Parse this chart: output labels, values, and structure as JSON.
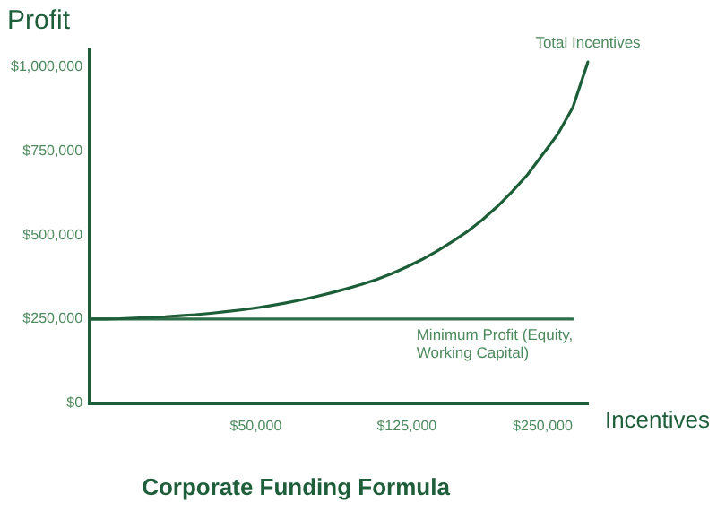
{
  "chart_data": {
    "type": "line",
    "title": "Corporate Funding Formula",
    "xlabel": "Incentives",
    "ylabel": "Profit",
    "categories": [
      null,
      null,
      null,
      null,
      null,
      null,
      null,
      null,
      null,
      null,
      null,
      "$50,000",
      null,
      null,
      null,
      null,
      null,
      null,
      null,
      null,
      null,
      "$125,000",
      null,
      null,
      null,
      null,
      null,
      null,
      null,
      null,
      "$250,000",
      null,
      null,
      null
    ],
    "series": [
      {
        "name": "Total Incentives",
        "color": "#1b5e38",
        "values": [
          250000,
          250000,
          251000,
          253000,
          255000,
          257000,
          260000,
          263000,
          267000,
          272000,
          277000,
          283000,
          290000,
          298000,
          307000,
          317000,
          328000,
          340000,
          353000,
          368000,
          385000,
          405000,
          427000,
          452000,
          480000,
          510000,
          545000,
          585000,
          630000,
          680000,
          740000,
          800000,
          880000,
          1015000
        ]
      },
      {
        "name": "Minimum Profit (Equity, Working Capital)",
        "color": "#2e6e48",
        "values": [
          250000,
          250000,
          250000,
          250000,
          250000,
          250000,
          250000,
          250000,
          250000,
          250000,
          250000,
          250000,
          250000,
          250000,
          250000,
          250000,
          250000,
          250000,
          250000,
          250000,
          250000,
          250000,
          250000,
          250000,
          250000,
          250000,
          250000,
          250000,
          250000,
          250000,
          250000,
          250000,
          250000,
          null
        ]
      }
    ],
    "ylim": [
      0,
      1050000
    ],
    "yticks": [
      {
        "value": 0,
        "label": "$0"
      },
      {
        "value": 250000,
        "label": "$250,000"
      },
      {
        "value": 500000,
        "label": "$500,000"
      },
      {
        "value": 750000,
        "label": "$750,000"
      },
      {
        "value": 1000000,
        "label": "$1,000,000"
      }
    ],
    "grid": false,
    "legend": false,
    "marker": "none",
    "line_style": "solid"
  }
}
